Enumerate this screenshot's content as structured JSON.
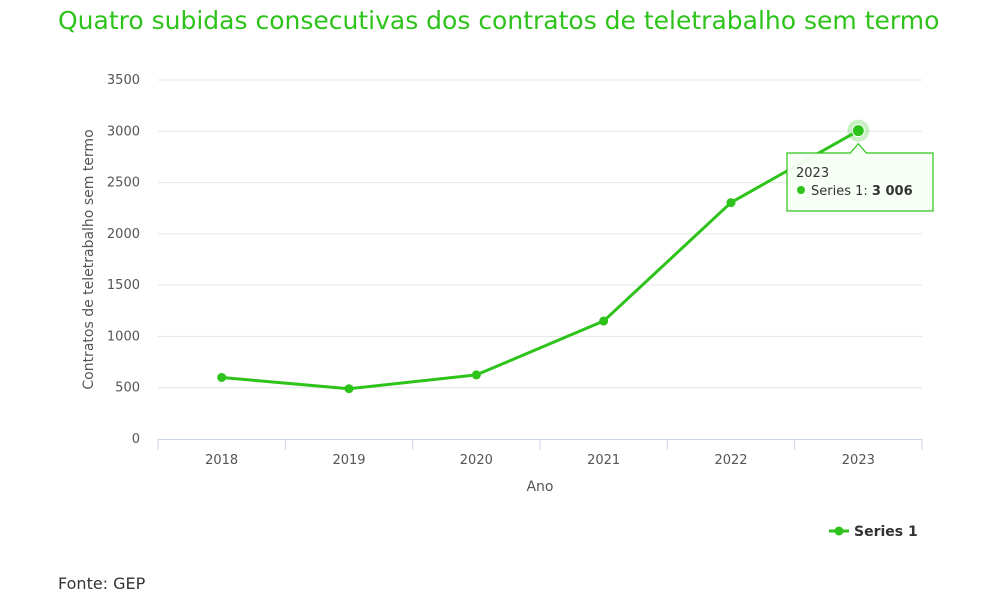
{
  "title": "Quatro subidas consecutivas dos contratos de teletrabalho sem termo",
  "source": "Fonte: GEP",
  "colors": {
    "accent": "#2ec31a",
    "grid": "#e6e6e6",
    "axis": "#ccd6eb"
  },
  "chart_data": {
    "type": "line",
    "title": "Quatro subidas consecutivas dos contratos de teletrabalho sem termo",
    "xlabel": "Ano",
    "ylabel": "Contratos de teletrabalho sem termo",
    "categories": [
      "2018",
      "2019",
      "2020",
      "2021",
      "2022",
      "2023"
    ],
    "series": [
      {
        "name": "Series 1",
        "values": [
          600,
          490,
          625,
          1150,
          2305,
          3006
        ]
      }
    ],
    "ylim": [
      0,
      3500
    ],
    "yticks": [
      0,
      500,
      1000,
      1500,
      2000,
      2500,
      3000,
      3500
    ],
    "grid": true,
    "legend_position": "bottom-right",
    "tooltip": {
      "header": "2023",
      "series_label": "Series 1: ",
      "value_text": "3 006"
    }
  }
}
